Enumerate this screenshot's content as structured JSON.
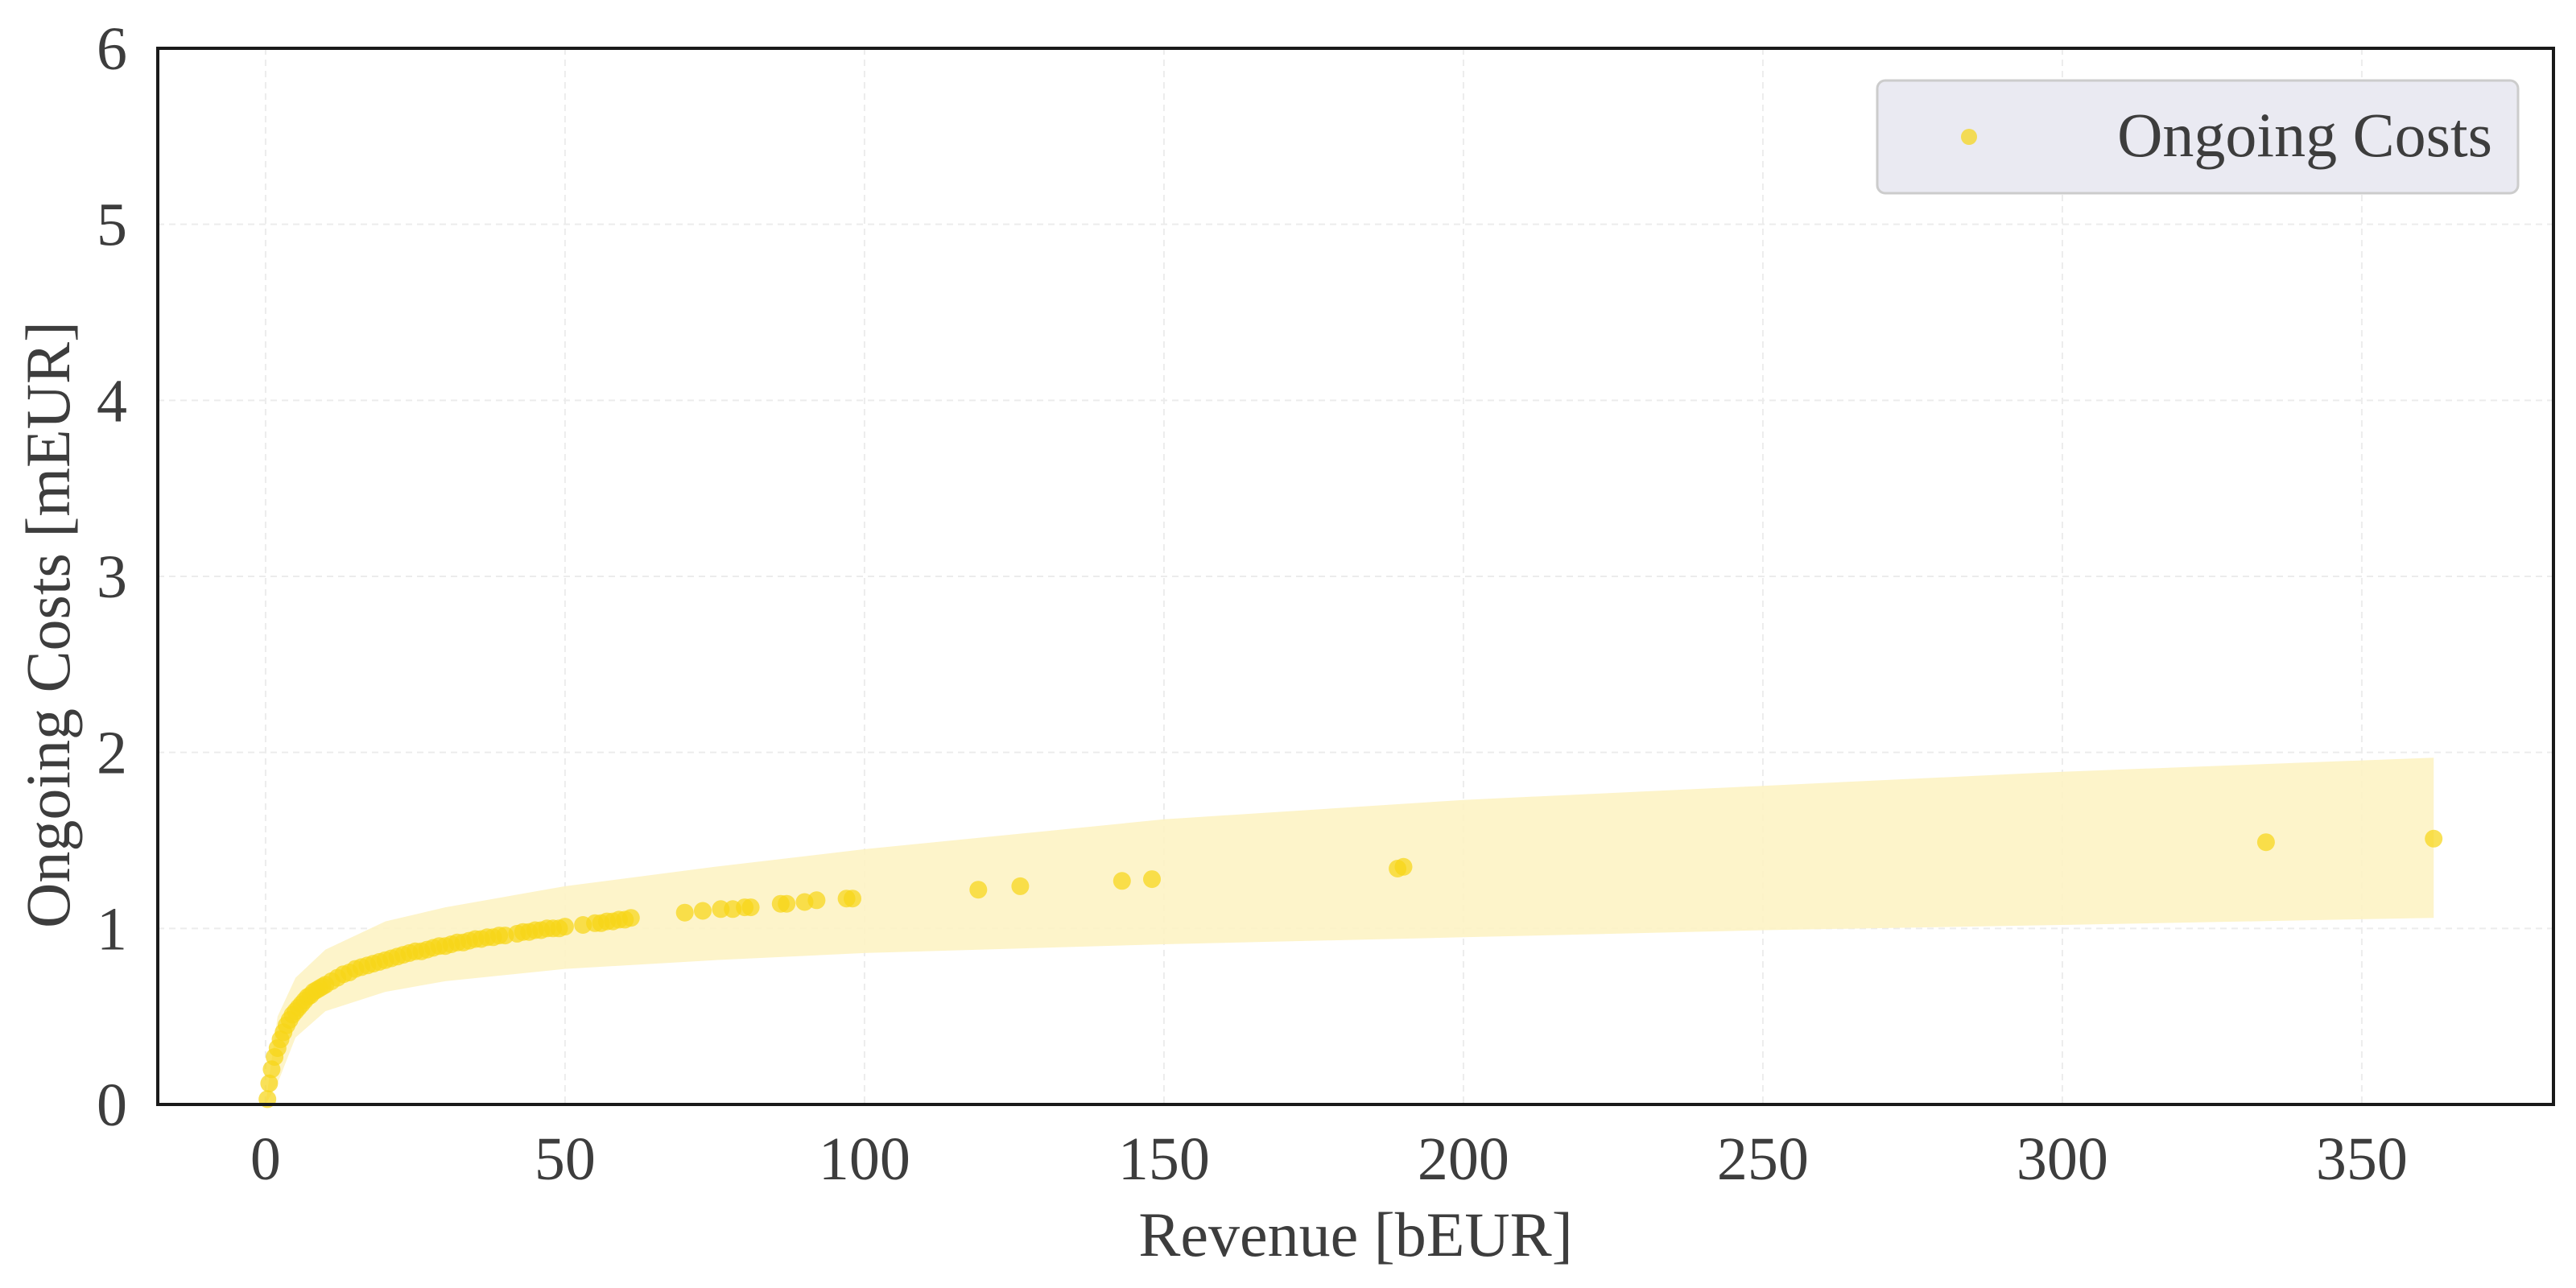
{
  "chart_data": {
    "type": "scatter",
    "xlabel": "Revenue [bEUR]",
    "ylabel": "Ongoing Costs [mEUR]",
    "xlim": [
      -18,
      382
    ],
    "ylim": [
      0,
      6
    ],
    "x_ticks": [
      0,
      50,
      100,
      150,
      200,
      250,
      300,
      350
    ],
    "y_ticks": [
      0,
      1,
      2,
      3,
      4,
      5,
      6
    ],
    "grid": true,
    "legend_position": "top-right",
    "series": [
      {
        "name": "Ongoing Costs",
        "color": "#f7d618",
        "x": [
          0.3,
          0.6,
          1,
          1.5,
          2,
          2.5,
          3,
          3.5,
          4,
          4.5,
          5,
          5.5,
          6,
          6.5,
          7,
          7.5,
          8,
          8.5,
          9,
          9.5,
          10,
          11,
          12,
          13,
          14,
          15,
          16,
          17,
          18,
          19,
          20,
          21,
          22,
          23,
          24,
          25,
          26,
          27,
          28,
          29,
          30,
          31,
          32,
          33,
          34,
          35,
          36,
          37,
          38,
          39,
          40,
          42,
          43,
          44,
          45,
          46,
          47,
          48,
          49,
          50,
          53,
          55,
          56,
          57,
          58,
          59,
          60,
          61,
          70,
          73,
          76,
          78,
          80,
          81,
          86,
          87,
          90,
          92,
          97,
          98,
          119,
          126,
          143,
          148,
          189,
          190,
          334,
          362
        ],
        "y": [
          0.03,
          0.12,
          0.2,
          0.27,
          0.32,
          0.37,
          0.41,
          0.45,
          0.48,
          0.51,
          0.53,
          0.55,
          0.57,
          0.59,
          0.61,
          0.62,
          0.64,
          0.65,
          0.66,
          0.67,
          0.68,
          0.7,
          0.72,
          0.74,
          0.75,
          0.77,
          0.78,
          0.79,
          0.8,
          0.81,
          0.82,
          0.83,
          0.84,
          0.85,
          0.86,
          0.87,
          0.87,
          0.88,
          0.89,
          0.9,
          0.9,
          0.91,
          0.92,
          0.92,
          0.93,
          0.94,
          0.94,
          0.95,
          0.95,
          0.96,
          0.96,
          0.97,
          0.98,
          0.98,
          0.99,
          0.99,
          1.0,
          1.0,
          1.0,
          1.01,
          1.02,
          1.03,
          1.03,
          1.04,
          1.04,
          1.05,
          1.05,
          1.06,
          1.09,
          1.1,
          1.11,
          1.11,
          1.12,
          1.12,
          1.14,
          1.14,
          1.15,
          1.16,
          1.17,
          1.17,
          1.22,
          1.24,
          1.27,
          1.28,
          1.34,
          1.35,
          1.49,
          1.51
        ]
      }
    ],
    "confidence_band": {
      "color": "#fdf3c4",
      "x": [
        0,
        2,
        5,
        10,
        20,
        30,
        50,
        75,
        100,
        150,
        200,
        250,
        300,
        362
      ],
      "lower": [
        0,
        0.12,
        0.38,
        0.53,
        0.64,
        0.7,
        0.77,
        0.82,
        0.86,
        0.91,
        0.95,
        0.99,
        1.02,
        1.06
      ],
      "upper": [
        0,
        0.5,
        0.72,
        0.88,
        1.04,
        1.12,
        1.24,
        1.35,
        1.45,
        1.62,
        1.73,
        1.81,
        1.89,
        1.97
      ]
    }
  }
}
